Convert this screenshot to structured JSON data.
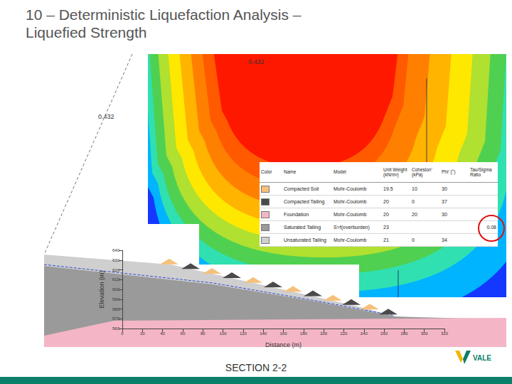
{
  "title": "10 – Deterministic Liquefaction Analysis – Liquefied Strength",
  "contour_labels": [
    0.432,
    0.432
  ],
  "materials": {
    "header": [
      "Color",
      "Name",
      "Model",
      "Unit Weight (kN/m³)",
      "Cohesion' (kPa)",
      "Phi' (°)",
      "Tau/Sigma Ratio"
    ],
    "rows": [
      {
        "color": "#f5c07a",
        "name": "Compacted Soil",
        "model": "Mohr-Coulomb",
        "unit_weight": 19.5,
        "cohesion": 10,
        "phi": 30,
        "ratio": null
      },
      {
        "color": "#4a4a4a",
        "name": "Compacted Tailing",
        "model": "Mohr-Coulomb",
        "unit_weight": 20,
        "cohesion": 0,
        "phi": 37,
        "ratio": null
      },
      {
        "color": "#f4b6c6",
        "name": "Foundation",
        "model": "Mohr-Coulomb",
        "unit_weight": 20,
        "cohesion": 20,
        "phi": 30,
        "ratio": null
      },
      {
        "color": "#9a9a9a",
        "name": "Saturated Tailing",
        "model": "S=f(overburden)",
        "unit_weight": 23,
        "cohesion": null,
        "phi": null,
        "ratio": 0.08
      },
      {
        "color": "#cfcfcf",
        "name": "Unsaturated Tailing",
        "model": "Mohr-Coulomb",
        "unit_weight": 21,
        "cohesion": 0,
        "phi": 34,
        "ratio": null
      }
    ]
  },
  "chart_data": {
    "type": "section",
    "x_label": "Distance (m)",
    "y_label": "Elevation (m)",
    "xlim": [
      0,
      320
    ],
    "xticks": [
      0,
      20,
      40,
      60,
      80,
      100,
      120,
      140,
      160,
      180,
      200,
      220,
      240,
      260,
      280,
      300,
      320
    ],
    "ylim": [
      560,
      640
    ],
    "yticks": [
      560,
      570,
      580,
      590,
      600,
      610,
      620,
      630,
      640
    ],
    "grid": false
  },
  "caption": "SECTION 2-2",
  "logo": "VALE"
}
